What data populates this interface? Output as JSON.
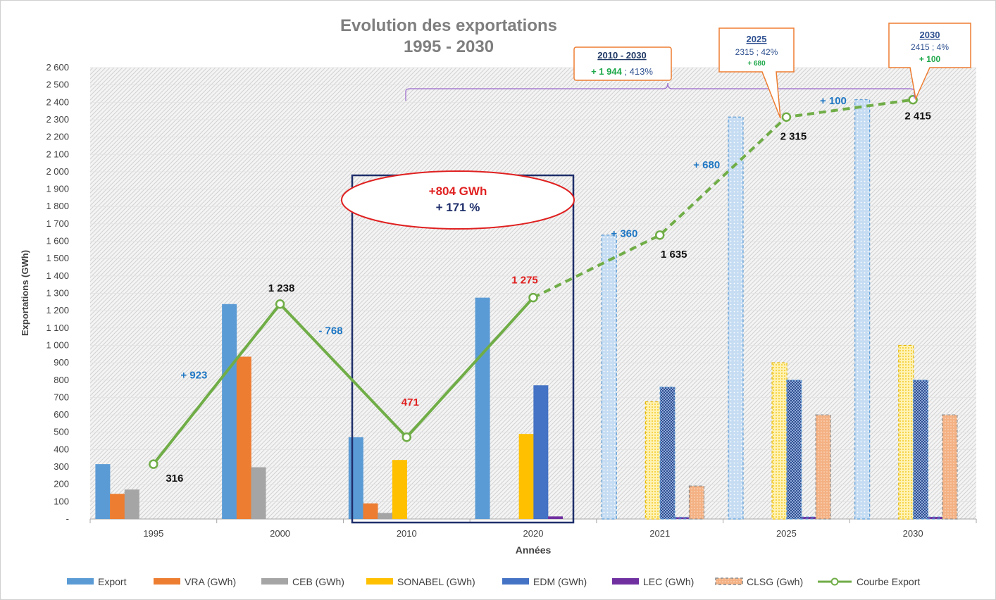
{
  "chart_data": {
    "type": "bar",
    "title_line1": "Evolution des exportations",
    "title_line2": "1995 - 2030",
    "xlabel": "Années",
    "ylabel": "Exportations (GWh)",
    "ylim": [
      0,
      2600
    ],
    "y_tick_labels": [
      "-",
      "100",
      "200",
      "300",
      "400",
      "500",
      "600",
      "700",
      "800",
      "900",
      "1 000",
      "1 100",
      "1 200",
      "1 300",
      "1 400",
      "1 500",
      "1 600",
      "1 700",
      "1 800",
      "1 900",
      "2 000",
      "2 100",
      "2 200",
      "2 300",
      "2 400",
      "2 500",
      "2 600"
    ],
    "categories": [
      "1995",
      "2000",
      "2010",
      "2020",
      "2021",
      "2025",
      "2030"
    ],
    "series": [
      {
        "name": "Export",
        "color": "#5b9bd5",
        "values": [
          316,
          1238,
          471,
          1275,
          1635,
          2315,
          2415
        ]
      },
      {
        "name": "VRA (GWh)",
        "color": "#ed7d31",
        "values": [
          145,
          935,
          90,
          0,
          0,
          0,
          0
        ]
      },
      {
        "name": "CEB (GWh)",
        "color": "#a5a5a5",
        "values": [
          170,
          298,
          35,
          0,
          0,
          0,
          0
        ]
      },
      {
        "name": "SONABEL (GWh)",
        "color": "#ffc000",
        "values": [
          0,
          0,
          340,
          490,
          675,
          900,
          1000
        ]
      },
      {
        "name": "EDM (GWh)",
        "color": "#4472c4",
        "values": [
          0,
          0,
          0,
          770,
          760,
          800,
          800
        ]
      },
      {
        "name": "LEC (GWh)",
        "color": "#7030a0",
        "values": [
          0,
          0,
          0,
          15,
          10,
          12,
          12
        ]
      },
      {
        "name": "CLSG (Gwh)",
        "color": "#f4b183",
        "values": [
          0,
          0,
          0,
          0,
          190,
          600,
          600
        ]
      }
    ],
    "line": {
      "name": "Courbe Export",
      "color": "#70ad47",
      "values": [
        316,
        1238,
        471,
        1275,
        1635,
        2315,
        2415
      ]
    },
    "point_labels": [
      "316",
      "1 238",
      "471",
      "1 275",
      "1 635",
      "2 315",
      "2 415"
    ],
    "delta_labels": [
      "+ 923",
      "- 768",
      "+ 360",
      "+ 680",
      "+ 100"
    ],
    "highlight": {
      "line1": "+804 GWh",
      "line2": "+ 171 %"
    },
    "callouts": [
      {
        "title": "2010 - 2030",
        "value": "+ 1 944",
        "rest": " ; 413%"
      },
      {
        "title": "2025",
        "line2": "2315 ; 42%",
        "line3": "+ 680"
      },
      {
        "title": "2030",
        "line2": "2415 ; 4%",
        "line3": "+ 100"
      }
    ]
  }
}
